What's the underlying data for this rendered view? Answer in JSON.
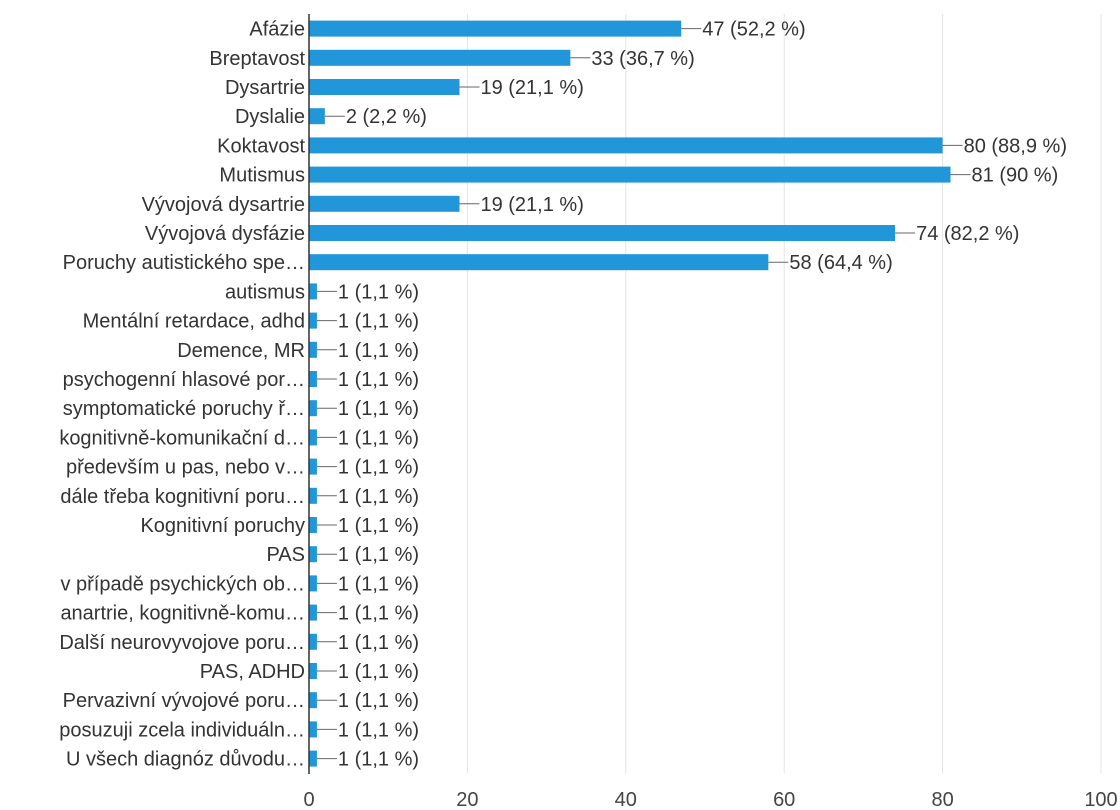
{
  "chart_data": {
    "type": "bar",
    "orientation": "horizontal",
    "categories": [
      "Afázie",
      "Breptavost",
      "Dysartrie",
      "Dyslalie",
      "Koktavost",
      "Mutismus",
      "Vývojová dysartrie",
      "Vývojová dysfázie",
      "Poruchy autistického spe…",
      "autismus",
      "Mentální retardace, adhd",
      "Demence, MR",
      "psychogenní hlasové por…",
      "symptomatické poruchy ř…",
      "kognitivně-komunikační d…",
      "především u pas, nebo v…",
      "dále třeba kognitivní poru…",
      "Kognitivní poruchy",
      "PAS",
      "v případě psychických ob…",
      "anartrie, kognitivně-komu…",
      "Další neurovyvojove poru…",
      "PAS, ADHD",
      "Pervazivní vývojové poru…",
      "posuzuji zcela individuáln…",
      "U všech diagnóz důvodu…"
    ],
    "values": [
      47,
      33,
      19,
      2,
      80,
      81,
      19,
      74,
      58,
      1,
      1,
      1,
      1,
      1,
      1,
      1,
      1,
      1,
      1,
      1,
      1,
      1,
      1,
      1,
      1,
      1
    ],
    "value_labels": [
      "47 (52,2 %)",
      "33 (36,7 %)",
      "19 (21,1 %)",
      "2 (2,2 %)",
      "80 (88,9 %)",
      "81 (90 %)",
      "19 (21,1 %)",
      "74 (82,2 %)",
      "58 (64,4 %)",
      "1 (1,1 %)",
      "1 (1,1 %)",
      "1 (1,1 %)",
      "1 (1,1 %)",
      "1 (1,1 %)",
      "1 (1,1 %)",
      "1 (1,1 %)",
      "1 (1,1 %)",
      "1 (1,1 %)",
      "1 (1,1 %)",
      "1 (1,1 %)",
      "1 (1,1 %)",
      "1 (1,1 %)",
      "1 (1,1 %)",
      "1 (1,1 %)",
      "1 (1,1 %)",
      "1 (1,1 %)"
    ],
    "xlim": [
      0,
      100
    ],
    "xticks": [
      0,
      20,
      40,
      60,
      80,
      100
    ],
    "grid": true,
    "bar_color": "#2196d9",
    "title": "",
    "xlabel": "",
    "ylabel": ""
  }
}
